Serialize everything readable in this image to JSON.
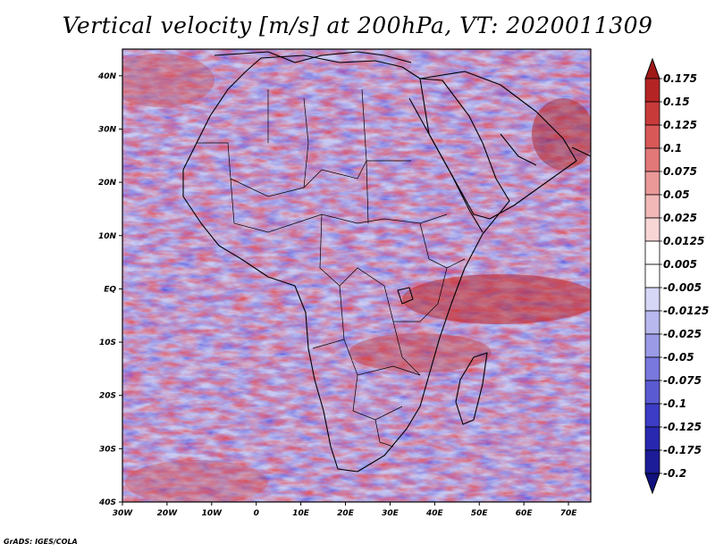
{
  "title": "Vertical velocity [m/s] at 200hPa, VT: 2020011309",
  "credit": "GrADS: IGES/COLA",
  "map": {
    "variable": "Vertical velocity",
    "units": "m/s",
    "level": "200hPa",
    "valid_time": "2020011309",
    "lat_labels": [
      "40N",
      "30N",
      "20N",
      "10N",
      "EQ",
      "10S",
      "20S",
      "30S",
      "40S"
    ],
    "lon_labels": [
      "30W",
      "20W",
      "10W",
      "0",
      "10E",
      "20E",
      "30E",
      "40E",
      "50E",
      "60E",
      "70E"
    ],
    "lat_values": [
      40,
      30,
      20,
      10,
      0,
      -10,
      -20,
      -30,
      -40
    ],
    "lon_values": [
      -30,
      -20,
      -10,
      0,
      10,
      20,
      30,
      40,
      50,
      60,
      70
    ],
    "lat_range": [
      -40,
      45
    ],
    "lon_range": [
      -30,
      75
    ]
  },
  "colorbar": {
    "labels": [
      "0.175",
      "0.15",
      "0.125",
      "0.1",
      "0.075",
      "0.05",
      "0.025",
      "0.0125",
      "0.005",
      "-0.005",
      "-0.0125",
      "-0.025",
      "-0.05",
      "-0.075",
      "-0.1",
      "-0.125",
      "-0.175",
      "-0.2"
    ],
    "colors": [
      "#a01818",
      "#b52424",
      "#c83a3a",
      "#d85858",
      "#e27878",
      "#ea9898",
      "#f2b8b8",
      "#f8d6d6",
      "#ffffff",
      "#ffffff",
      "#d6d6f6",
      "#b8b8ee",
      "#9a9ae6",
      "#7878de",
      "#5a5ad2",
      "#3c3cc6",
      "#2828b0",
      "#1c1c98",
      "#10107e"
    ]
  }
}
